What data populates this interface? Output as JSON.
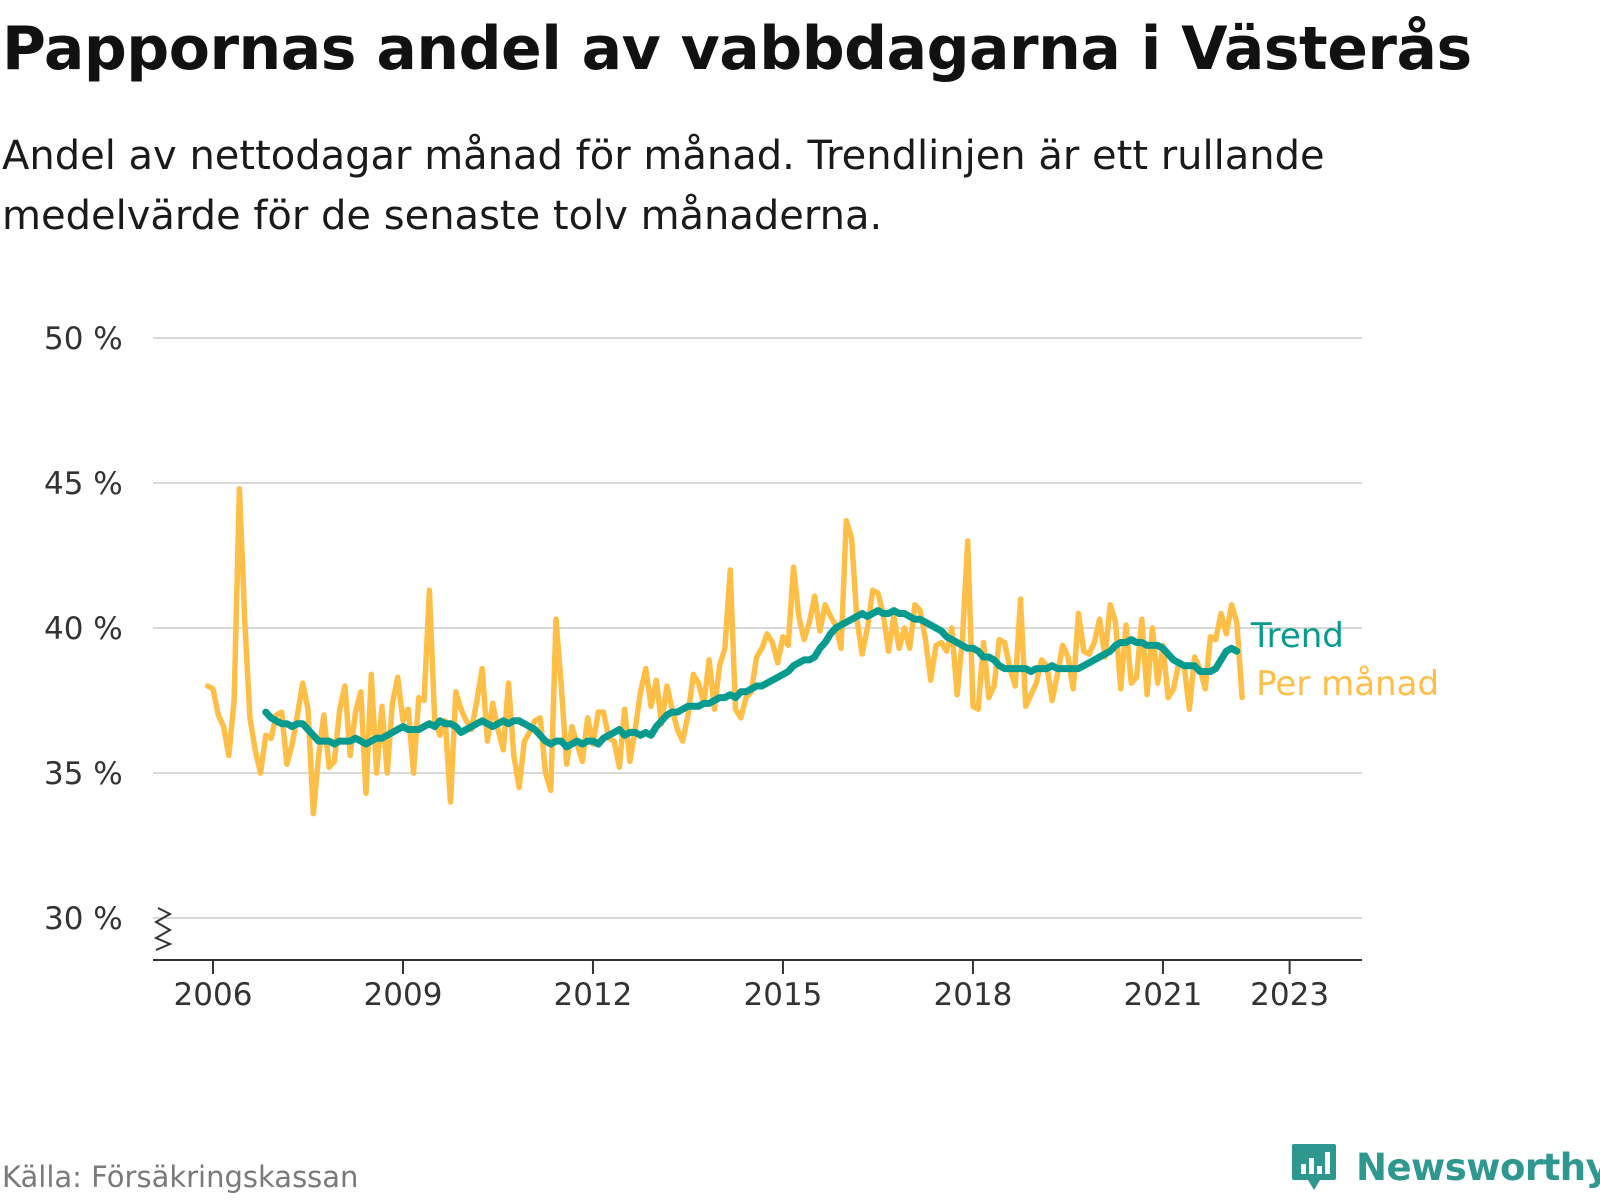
{
  "title": "Pappornas andel av vabbdagarna i Västerås",
  "subtitle": "Andel av nettodagar månad för månad. Trendlinjen är ett rullande medelvärde för de senaste tolv månaderna.",
  "source": "Källa: Försäkringskassan",
  "brand": {
    "name": "Newsworthy",
    "icon": "newsworthy-bar-chart-icon"
  },
  "colors": {
    "monthly": "#ffbf47",
    "trend": "#079b8f",
    "grid": "#d9d9d9",
    "axis": "#333333"
  },
  "chart_data": {
    "type": "line",
    "x_unit": "month",
    "y_unit": "%",
    "ylim": [
      30,
      50
    ],
    "yticks": [
      30,
      35,
      40,
      45,
      50
    ],
    "ytick_labels": [
      "30 %",
      "35 %",
      "40 %",
      "45 %",
      "50 %"
    ],
    "y_axis_break": true,
    "xticks": [
      "2006",
      "2009",
      "2012",
      "2015",
      "2018",
      "2021",
      "2023"
    ],
    "grid": "horizontal",
    "legend_placement": "line-end-labels",
    "series": [
      {
        "name": "Per månad",
        "start": "2005-12",
        "values": [
          38.0,
          37.9,
          37.0,
          36.6,
          35.6,
          37.5,
          44.8,
          40.3,
          36.9,
          35.8,
          35.0,
          36.3,
          36.2,
          37.0,
          37.1,
          35.3,
          36.0,
          37.0,
          38.1,
          37.2,
          33.6,
          35.6,
          37.0,
          35.2,
          35.4,
          37.2,
          38.0,
          35.6,
          37.1,
          37.8,
          34.3,
          38.4,
          35.0,
          37.3,
          35.0,
          37.4,
          38.3,
          36.8,
          37.2,
          35.0,
          37.6,
          37.5,
          41.3,
          36.8,
          36.3,
          36.8,
          34.0,
          37.8,
          37.2,
          36.8,
          36.5,
          37.5,
          38.6,
          36.1,
          37.4,
          36.5,
          35.8,
          38.1,
          35.6,
          34.5,
          36.1,
          36.4,
          36.8,
          36.9,
          35.0,
          34.4,
          40.3,
          38.0,
          35.3,
          36.6,
          36.0,
          35.4,
          36.9,
          36.0,
          37.1,
          37.1,
          36.2,
          36.1,
          35.2,
          37.2,
          35.4,
          36.5,
          37.8,
          38.6,
          37.3,
          38.2,
          36.7,
          38.0,
          37.2,
          36.5,
          36.1,
          37.0,
          38.4,
          38.1,
          37.4,
          38.9,
          37.2,
          38.7,
          39.3,
          42.0,
          37.2,
          36.9,
          37.6,
          37.8,
          39.0,
          39.3,
          39.8,
          39.5,
          38.8,
          39.7,
          39.4,
          42.1,
          40.4,
          39.6,
          40.2,
          41.1,
          39.9,
          40.8,
          40.4,
          40.1,
          39.3,
          43.7,
          43.1,
          40.3,
          39.1,
          40.0,
          41.3,
          41.2,
          40.5,
          39.2,
          40.4,
          39.3,
          40.0,
          39.3,
          40.8,
          40.6,
          39.6,
          38.2,
          39.4,
          39.5,
          39.2,
          40.0,
          37.7,
          39.6,
          43.0,
          37.3,
          37.2,
          39.5,
          37.6,
          38.0,
          39.6,
          39.5,
          38.6,
          38.0,
          41.0,
          37.3,
          37.7,
          38.1,
          38.9,
          38.7,
          37.5,
          38.4,
          39.4,
          39.0,
          37.9,
          40.5,
          39.2,
          39.1,
          39.5,
          40.3,
          39.0,
          40.8,
          40.2,
          37.9,
          40.1,
          38.1,
          38.3,
          40.3,
          37.7,
          40.0,
          38.1,
          39.4,
          37.6,
          37.9,
          38.8,
          38.7,
          37.2,
          39.0,
          38.6,
          37.9,
          39.7,
          39.6,
          40.5,
          39.8,
          40.8,
          40.2,
          37.6
        ]
      },
      {
        "name": "Trend",
        "start": "2006-11",
        "values": [
          37.1,
          36.9,
          36.8,
          36.7,
          36.7,
          36.6,
          36.7,
          36.7,
          36.5,
          36.3,
          36.1,
          36.1,
          36.1,
          36.0,
          36.1,
          36.1,
          36.1,
          36.2,
          36.1,
          36.0,
          36.1,
          36.2,
          36.2,
          36.3,
          36.4,
          36.5,
          36.6,
          36.5,
          36.5,
          36.5,
          36.6,
          36.7,
          36.6,
          36.8,
          36.7,
          36.7,
          36.6,
          36.4,
          36.5,
          36.6,
          36.7,
          36.8,
          36.7,
          36.6,
          36.7,
          36.8,
          36.7,
          36.8,
          36.8,
          36.7,
          36.6,
          36.5,
          36.3,
          36.1,
          36.0,
          36.1,
          36.1,
          35.9,
          36.0,
          36.1,
          36.0,
          36.1,
          36.1,
          36.0,
          36.2,
          36.3,
          36.4,
          36.5,
          36.3,
          36.4,
          36.4,
          36.3,
          36.4,
          36.3,
          36.6,
          36.8,
          37.0,
          37.1,
          37.1,
          37.2,
          37.3,
          37.3,
          37.3,
          37.4,
          37.4,
          37.5,
          37.6,
          37.6,
          37.7,
          37.6,
          37.8,
          37.8,
          37.9,
          38.0,
          38.0,
          38.1,
          38.2,
          38.3,
          38.4,
          38.5,
          38.7,
          38.8,
          38.9,
          38.9,
          39.0,
          39.3,
          39.5,
          39.8,
          40.0,
          40.1,
          40.2,
          40.3,
          40.4,
          40.5,
          40.4,
          40.5,
          40.6,
          40.5,
          40.5,
          40.6,
          40.5,
          40.5,
          40.4,
          40.3,
          40.3,
          40.2,
          40.1,
          40.0,
          39.9,
          39.7,
          39.6,
          39.5,
          39.4,
          39.3,
          39.3,
          39.2,
          39.0,
          39.0,
          38.9,
          38.7,
          38.6,
          38.6,
          38.6,
          38.6,
          38.6,
          38.5,
          38.6,
          38.6,
          38.6,
          38.7,
          38.6,
          38.6,
          38.6,
          38.6,
          38.6,
          38.7,
          38.8,
          38.9,
          39.0,
          39.1,
          39.2,
          39.4,
          39.5,
          39.5,
          39.6,
          39.5,
          39.5,
          39.4,
          39.4,
          39.4,
          39.3,
          39.1,
          38.9,
          38.8,
          38.7,
          38.7,
          38.7,
          38.5,
          38.5,
          38.5,
          38.6,
          38.9,
          39.2,
          39.3,
          39.2
        ]
      }
    ]
  }
}
